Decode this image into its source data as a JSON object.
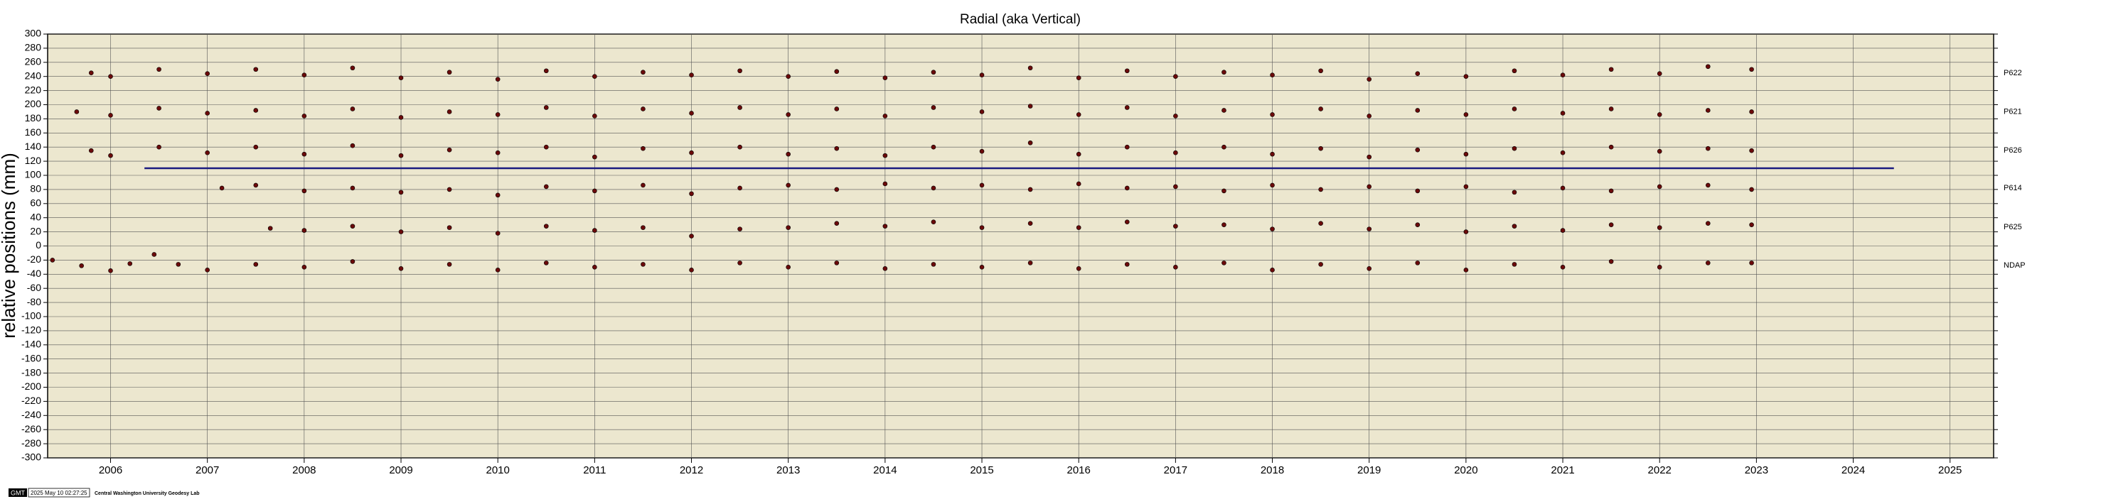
{
  "chart_data": {
    "type": "scatter",
    "title": "Radial (aka Vertical)",
    "y_label": "relative positions (mm)",
    "xlim": [
      2005.35,
      2025.45
    ],
    "ylim": [
      -300,
      300
    ],
    "xticks": [
      2006,
      2007,
      2008,
      2009,
      2010,
      2011,
      2012,
      2013,
      2014,
      2015,
      2016,
      2017,
      2018,
      2019,
      2020,
      2021,
      2022,
      2023,
      2024,
      2025
    ],
    "yticks": [
      -300,
      -280,
      -260,
      -240,
      -220,
      -200,
      -180,
      -160,
      -140,
      -120,
      -100,
      -80,
      -60,
      -40,
      -20,
      0,
      20,
      40,
      60,
      80,
      100,
      120,
      140,
      160,
      180,
      200,
      220,
      240,
      260,
      280,
      300
    ],
    "grid": true,
    "color": "#6b0a0a",
    "series": [
      {
        "name": "P622",
        "x": [
          2005.8,
          2006,
          2006.5,
          2007,
          2007.5,
          2008,
          2008.5,
          2009,
          2009.5,
          2010,
          2010.5,
          2011,
          2011.5,
          2012,
          2012.5,
          2013,
          2013.5,
          2014,
          2014.5,
          2015,
          2015.5,
          2016,
          2016.5,
          2017,
          2017.5,
          2018,
          2018.5,
          2019,
          2019.5,
          2020,
          2020.5,
          2021,
          2021.5,
          2022,
          2022.5,
          2022.95
        ],
        "values": [
          245,
          240,
          250,
          244,
          250,
          242,
          252,
          238,
          246,
          236,
          248,
          240,
          246,
          242,
          248,
          240,
          247,
          238,
          246,
          242,
          252,
          238,
          248,
          240,
          246,
          242,
          248,
          236,
          244,
          240,
          248,
          242,
          250,
          244,
          254,
          250
        ]
      },
      {
        "name": "P621",
        "x": [
          2005.65,
          2006,
          2006.5,
          2007,
          2007.5,
          2008,
          2008.5,
          2009,
          2009.5,
          2010,
          2010.5,
          2011,
          2011.5,
          2012,
          2012.5,
          2013,
          2013.5,
          2014,
          2014.5,
          2015,
          2015.5,
          2016,
          2016.5,
          2017,
          2017.5,
          2018,
          2018.5,
          2019,
          2019.5,
          2020,
          2020.5,
          2021,
          2021.5,
          2022,
          2022.5,
          2022.95
        ],
        "values": [
          190,
          185,
          195,
          188,
          192,
          184,
          194,
          182,
          190,
          186,
          196,
          184,
          194,
          188,
          196,
          186,
          194,
          184,
          196,
          190,
          198,
          186,
          196,
          184,
          192,
          186,
          194,
          184,
          192,
          186,
          194,
          188,
          194,
          186,
          192,
          190
        ]
      },
      {
        "name": "P626",
        "x": [
          2005.8,
          2006,
          2006.5,
          2007,
          2007.5,
          2008,
          2008.5,
          2009,
          2009.5,
          2010,
          2010.5,
          2011,
          2011.5,
          2012,
          2012.5,
          2013,
          2013.5,
          2014,
          2014.5,
          2015,
          2015.5,
          2016,
          2016.5,
          2017,
          2017.5,
          2018,
          2018.5,
          2019,
          2019.5,
          2020,
          2020.5,
          2021,
          2021.5,
          2022,
          2022.5,
          2022.95
        ],
        "values": [
          135,
          128,
          140,
          132,
          140,
          130,
          142,
          128,
          136,
          132,
          140,
          126,
          138,
          132,
          140,
          130,
          138,
          128,
          140,
          134,
          146,
          130,
          140,
          132,
          140,
          130,
          138,
          126,
          136,
          130,
          138,
          132,
          140,
          134,
          138,
          135
        ]
      },
      {
        "name": "P614",
        "x": [
          2007.15,
          2007.5,
          2008,
          2008.5,
          2009,
          2009.5,
          2010,
          2010.5,
          2011,
          2011.5,
          2012,
          2012.5,
          2013,
          2013.5,
          2014,
          2014.5,
          2015,
          2015.5,
          2016,
          2016.5,
          2017,
          2017.5,
          2018,
          2018.5,
          2019,
          2019.5,
          2020,
          2020.5,
          2021,
          2021.5,
          2022,
          2022.5,
          2022.95
        ],
        "values": [
          82,
          86,
          78,
          82,
          76,
          80,
          72,
          84,
          78,
          86,
          74,
          82,
          86,
          80,
          88,
          82,
          86,
          80,
          88,
          82,
          84,
          78,
          86,
          80,
          84,
          78,
          84,
          76,
          82,
          78,
          84,
          86,
          80
        ]
      },
      {
        "name": "P625",
        "x": [
          2007.65,
          2008,
          2008.5,
          2009,
          2009.5,
          2010,
          2010.5,
          2011,
          2011.5,
          2012,
          2012.5,
          2013,
          2013.5,
          2014,
          2014.5,
          2015,
          2015.5,
          2016,
          2016.5,
          2017,
          2017.5,
          2018,
          2018.5,
          2019,
          2019.5,
          2020,
          2020.5,
          2021,
          2021.5,
          2022,
          2022.5,
          2022.95
        ],
        "values": [
          25,
          22,
          28,
          20,
          26,
          18,
          28,
          22,
          26,
          14,
          24,
          26,
          32,
          28,
          34,
          26,
          32,
          26,
          34,
          28,
          30,
          24,
          32,
          24,
          30,
          20,
          28,
          22,
          30,
          26,
          32,
          30
        ]
      },
      {
        "name": "NDAP",
        "x": [
          2005.4,
          2005.7,
          2006,
          2006.2,
          2006.45,
          2006.7,
          2007,
          2007.5,
          2008,
          2008.5,
          2009,
          2009.5,
          2010,
          2010.5,
          2011,
          2011.5,
          2012,
          2012.5,
          2013,
          2013.5,
          2014,
          2014.5,
          2015,
          2015.5,
          2016,
          2016.5,
          2017,
          2017.5,
          2018,
          2018.5,
          2019,
          2019.5,
          2020,
          2020.5,
          2021,
          2021.5,
          2022,
          2022.5,
          2022.95
        ],
        "values": [
          -20,
          -28,
          -35,
          -25,
          -12,
          -26,
          -34,
          -26,
          -30,
          -22,
          -32,
          -26,
          -34,
          -24,
          -30,
          -26,
          -34,
          -24,
          -30,
          -24,
          -32,
          -26,
          -30,
          -24,
          -32,
          -26,
          -30,
          -24,
          -34,
          -26,
          -32,
          -24,
          -34,
          -26,
          -30,
          -22,
          -30,
          -24,
          -24
        ]
      }
    ],
    "reference_line": {
      "color": "#1a1a80",
      "x": [
        2006.35,
        2024.42
      ],
      "values": [
        110,
        110
      ]
    }
  },
  "footer": {
    "logo": "GMT",
    "timestamp": "2025 May 10 02:27:25",
    "credit": "Central Washington University Geodesy Lab"
  }
}
